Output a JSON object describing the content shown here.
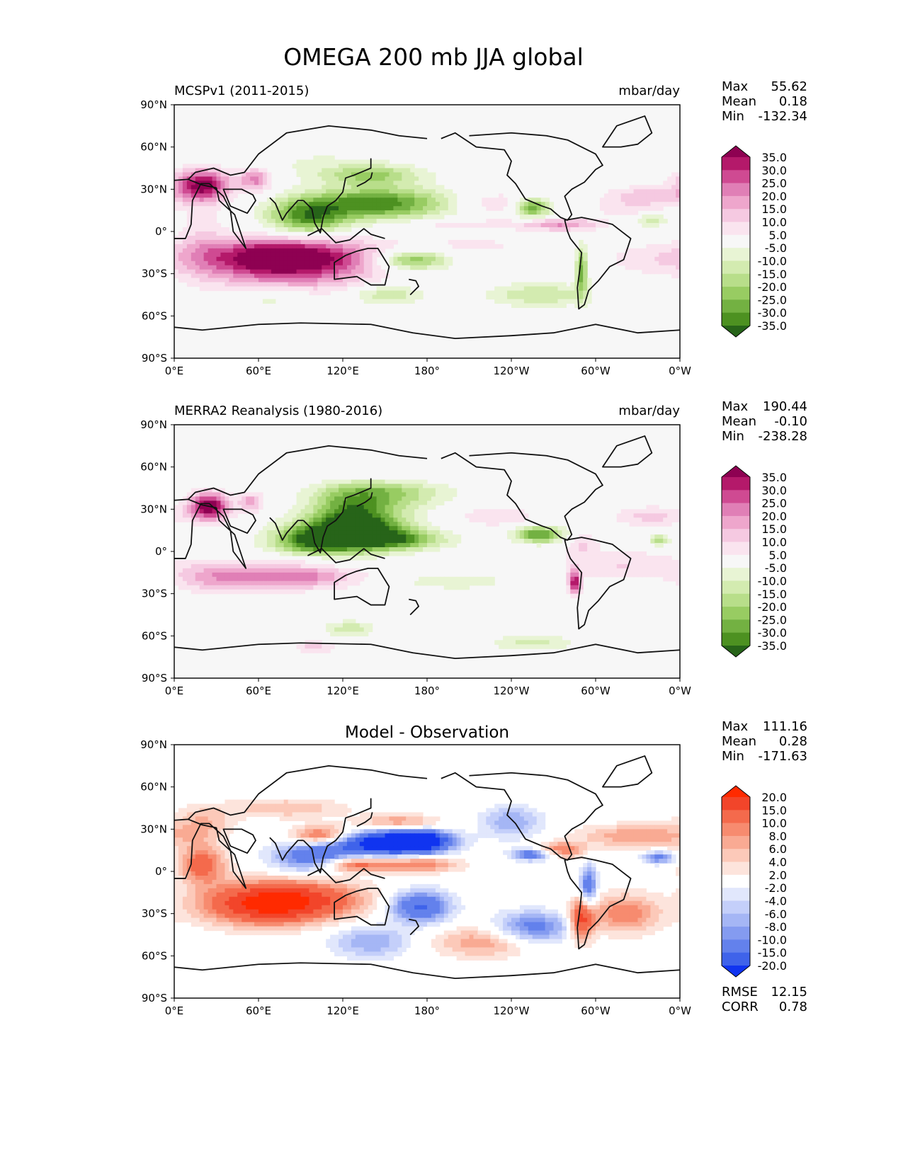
{
  "figure": {
    "title": "OMEGA 200 mb JJA global"
  },
  "chart_data": [
    {
      "type": "heatmap",
      "panel": "test",
      "title": "MCSPv1 (2011-2015)",
      "units": "mbar/day",
      "stats": {
        "max_label": "Max",
        "max": "55.62",
        "mean_label": "Mean",
        "mean": "0.18",
        "min_label": "Min",
        "min": "-132.34"
      },
      "x_ticks": [
        "0°E",
        "60°E",
        "120°E",
        "180°",
        "120°W",
        "60°W",
        "0°W"
      ],
      "y_ticks": [
        "90°N",
        "60°N",
        "30°N",
        "0°",
        "30°S",
        "60°S",
        "90°S"
      ],
      "xlim": [
        0,
        360
      ],
      "ylim": [
        -90,
        90
      ],
      "colorbar": {
        "levels": [
          "35.0",
          "30.0",
          "25.0",
          "20.0",
          "15.0",
          "10.0",
          "5.0",
          "-5.0",
          "-10.0",
          "-15.0",
          "-20.0",
          "-25.0",
          "-30.0",
          "-35.0"
        ],
        "colors": [
          "#8e0152",
          "#b4196a",
          "#cf4a92",
          "#e07fb6",
          "#eea6cc",
          "#f5c9e1",
          "#fae4ef",
          "#f7f7f7",
          "#e8f4d4",
          "#d3ebb0",
          "#b8de8a",
          "#98cc62",
          "#73b142",
          "#4d9121",
          "#276419"
        ]
      },
      "blobs": [
        [
          20,
          33,
          14,
          8,
          38
        ],
        [
          58,
          37,
          8,
          6,
          22
        ],
        [
          80,
          -17,
          40,
          9,
          36
        ],
        [
          60,
          -27,
          30,
          12,
          16
        ],
        [
          110,
          -30,
          30,
          12,
          12
        ],
        [
          20,
          -5,
          12,
          20,
          8
        ],
        [
          95,
          10,
          20,
          9,
          -30
        ],
        [
          145,
          20,
          35,
          8,
          -34
        ],
        [
          170,
          -20,
          18,
          5,
          -26
        ],
        [
          255,
          17,
          9,
          5,
          -30
        ],
        [
          290,
          -28,
          3,
          12,
          -28
        ],
        [
          150,
          -45,
          20,
          5,
          -15
        ],
        [
          260,
          -45,
          25,
          6,
          -15
        ],
        [
          70,
          -47,
          20,
          6,
          -10
        ],
        [
          335,
          25,
          20,
          5,
          14
        ],
        [
          230,
          20,
          20,
          6,
          10
        ],
        [
          275,
          5,
          20,
          3,
          20
        ],
        [
          200,
          5,
          30,
          3,
          8
        ],
        [
          340,
          8,
          8,
          3,
          -15
        ],
        [
          140,
          40,
          25,
          5,
          -20
        ],
        [
          210,
          -10,
          40,
          6,
          6
        ],
        [
          340,
          -20,
          25,
          8,
          8
        ],
        [
          100,
          50,
          40,
          8,
          -5
        ],
        [
          320,
          15,
          20,
          5,
          6
        ]
      ]
    },
    {
      "type": "heatmap",
      "panel": "reference",
      "title": "MERRA2 Reanalysis (1980-2016)",
      "units": "mbar/day",
      "stats": {
        "max_label": "Max",
        "max": "190.44",
        "mean_label": "Mean",
        "mean": "-0.10",
        "min_label": "Min",
        "min": "-238.28"
      },
      "x_ticks": [
        "0°E",
        "60°E",
        "120°E",
        "180°",
        "120°W",
        "60°W",
        "0°W"
      ],
      "y_ticks": [
        "90°N",
        "60°N",
        "30°N",
        "0°",
        "30°S",
        "60°S",
        "90°S"
      ],
      "xlim": [
        0,
        360
      ],
      "ylim": [
        -90,
        90
      ],
      "colorbar": {
        "levels": [
          "35.0",
          "30.0",
          "25.0",
          "20.0",
          "15.0",
          "10.0",
          "5.0",
          "-5.0",
          "-10.0",
          "-15.0",
          "-20.0",
          "-25.0",
          "-30.0",
          "-35.0"
        ],
        "colors": [
          "#8e0152",
          "#b4196a",
          "#cf4a92",
          "#e07fb6",
          "#eea6cc",
          "#f5c9e1",
          "#fae4ef",
          "#f7f7f7",
          "#e8f4d4",
          "#d3ebb0",
          "#b8de8a",
          "#98cc62",
          "#73b142",
          "#4d9121",
          "#276419"
        ]
      },
      "blobs": [
        [
          25,
          32,
          10,
          7,
          40
        ],
        [
          55,
          35,
          6,
          5,
          18
        ],
        [
          85,
          -18,
          30,
          6,
          24
        ],
        [
          30,
          -18,
          20,
          8,
          16
        ],
        [
          100,
          8,
          22,
          8,
          -34
        ],
        [
          135,
          15,
          25,
          10,
          -32
        ],
        [
          160,
          8,
          25,
          5,
          -22
        ],
        [
          125,
          28,
          20,
          12,
          -22
        ],
        [
          150,
          38,
          30,
          6,
          -16
        ],
        [
          260,
          12,
          12,
          4,
          -32
        ],
        [
          345,
          8,
          5,
          3,
          -18
        ],
        [
          285,
          -22,
          3,
          6,
          34
        ],
        [
          125,
          -55,
          12,
          4,
          -14
        ],
        [
          255,
          -65,
          20,
          4,
          -12
        ],
        [
          100,
          -68,
          10,
          3,
          12
        ],
        [
          230,
          25,
          20,
          5,
          10
        ],
        [
          200,
          -10,
          40,
          6,
          6
        ],
        [
          90,
          -5,
          20,
          3,
          8
        ],
        [
          320,
          -10,
          30,
          8,
          10
        ],
        [
          290,
          5,
          8,
          6,
          10
        ],
        [
          340,
          25,
          20,
          5,
          12
        ],
        [
          150,
          45,
          30,
          4,
          -10
        ],
        [
          200,
          -20,
          30,
          5,
          -10
        ]
      ]
    },
    {
      "type": "heatmap",
      "panel": "difference",
      "title": "Model - Observation",
      "stats": {
        "max_label": "Max",
        "max": "111.16",
        "mean_label": "Mean",
        "mean": "0.28",
        "min_label": "Min",
        "min": "-171.63"
      },
      "extra_stats": {
        "rmse_label": "RMSE",
        "rmse": "12.15",
        "corr_label": "CORR",
        "corr": "0.78"
      },
      "x_ticks": [
        "0°E",
        "60°E",
        "120°E",
        "180°",
        "120°W",
        "60°W",
        "0°W"
      ],
      "y_ticks": [
        "90°N",
        "60°N",
        "30°N",
        "0°",
        "30°S",
        "60°S",
        "90°S"
      ],
      "xlim": [
        0,
        360
      ],
      "ylim": [
        -90,
        90
      ],
      "colorbar": {
        "levels": [
          "20.0",
          "15.0",
          "10.0",
          "8.0",
          "6.0",
          "4.0",
          "2.0",
          "-2.0",
          "-4.0",
          "-6.0",
          "-8.0",
          "-10.0",
          "-15.0",
          "-20.0"
        ],
        "colors": [
          "#ff2a00",
          "#f2452a",
          "#f46a4c",
          "#f78b6f",
          "#f9aa93",
          "#fcc9b9",
          "#fde4dc",
          "#ffffff",
          "#e1e7fc",
          "#c4cffa",
          "#a5b6f5",
          "#849bf0",
          "#6381ec",
          "#3f63ea",
          "#1034f0"
        ]
      },
      "blobs": [
        [
          150,
          20,
          25,
          6,
          -25
        ],
        [
          175,
          22,
          15,
          5,
          -22
        ],
        [
          100,
          10,
          20,
          8,
          -15
        ],
        [
          85,
          -20,
          35,
          10,
          16
        ],
        [
          60,
          -25,
          30,
          10,
          12
        ],
        [
          105,
          25,
          15,
          5,
          14
        ],
        [
          125,
          5,
          18,
          4,
          14
        ],
        [
          175,
          -25,
          15,
          8,
          -16
        ],
        [
          175,
          5,
          20,
          4,
          10
        ],
        [
          160,
          35,
          20,
          4,
          8
        ],
        [
          295,
          -10,
          4,
          10,
          -14
        ],
        [
          290,
          -35,
          6,
          10,
          16
        ],
        [
          320,
          -30,
          18,
          10,
          10
        ],
        [
          255,
          -40,
          20,
          8,
          -12
        ],
        [
          140,
          -50,
          20,
          8,
          -8
        ],
        [
          220,
          -50,
          25,
          8,
          8
        ],
        [
          240,
          35,
          15,
          8,
          -8
        ],
        [
          330,
          25,
          30,
          6,
          8
        ],
        [
          20,
          5,
          12,
          10,
          12
        ],
        [
          255,
          12,
          10,
          3,
          -14
        ],
        [
          275,
          15,
          12,
          4,
          10
        ],
        [
          80,
          45,
          30,
          5,
          6
        ],
        [
          345,
          10,
          8,
          3,
          -12
        ],
        [
          20,
          35,
          15,
          8,
          6
        ]
      ]
    }
  ]
}
